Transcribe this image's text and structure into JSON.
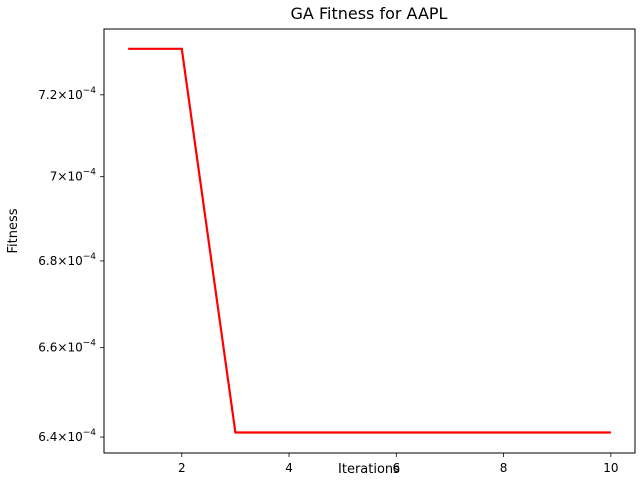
{
  "chart_data": {
    "type": "line",
    "title": "GA Fitness for AAPL",
    "xlabel": "Iterations",
    "ylabel": "Fitness",
    "x": [
      1,
      2,
      3,
      4,
      5,
      6,
      7,
      8,
      9,
      10
    ],
    "series": [
      {
        "values": [
          0.0007315,
          0.0007315,
          0.000641,
          0.000641,
          0.000641,
          0.000641,
          0.000641,
          0.000641,
          0.000641,
          0.000641
        ],
        "color": "#ff0000"
      }
    ],
    "xlim": [
      0.55,
      10.45
    ],
    "ylim": [
      0.0006365,
      0.0007365
    ],
    "log_y": true,
    "grid": false,
    "x_ticks": [
      {
        "value": 2,
        "label": "2"
      },
      {
        "value": 4,
        "label": "4"
      },
      {
        "value": 6,
        "label": "6"
      },
      {
        "value": 8,
        "label": "8"
      },
      {
        "value": 10,
        "label": "10"
      }
    ],
    "y_ticks": [
      {
        "value": 0.00064,
        "mantissa": "6.4",
        "times": "×",
        "base": "10",
        "exponent": "−4"
      },
      {
        "value": 0.00066,
        "mantissa": "6.6",
        "times": "×",
        "base": "10",
        "exponent": "−4"
      },
      {
        "value": 0.00068,
        "mantissa": "6.8",
        "times": "×",
        "base": "10",
        "exponent": "−4"
      },
      {
        "value": 0.0007,
        "mantissa": "7",
        "times": "×",
        "base": "10",
        "exponent": "−4"
      },
      {
        "value": 0.00072,
        "mantissa": "7.2",
        "times": "×",
        "base": "10",
        "exponent": "−4"
      }
    ]
  }
}
